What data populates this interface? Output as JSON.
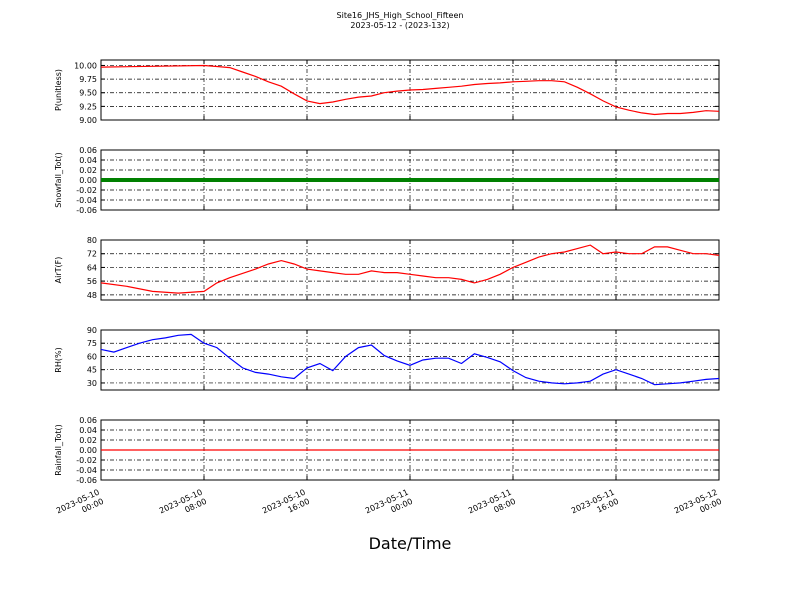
{
  "figure": {
    "title": "Site16_JHS_High_School_Fifteen",
    "subtitle": "2023-05-12 - (2023-132)",
    "xlabel": "Date/Time"
  },
  "chart_data": [
    {
      "type": "line",
      "ylabel": "P(unitless)",
      "ylim": [
        9.0,
        10.1
      ],
      "yticks": [
        "9.00",
        "9.25",
        "9.50",
        "9.75",
        "10.00"
      ],
      "color": "#ff0000",
      "grid": true,
      "x_hours": [
        0,
        8,
        9,
        10,
        11,
        12,
        13,
        14,
        15,
        16,
        17,
        18,
        19,
        20,
        21,
        22,
        23,
        24,
        25,
        26,
        27,
        28,
        29,
        30,
        31,
        32,
        33,
        34,
        35,
        36,
        37,
        38,
        39,
        40,
        41,
        42,
        43,
        44,
        45,
        46,
        47,
        48
      ],
      "values": [
        9.97,
        10.0,
        9.98,
        9.96,
        9.88,
        9.8,
        9.7,
        9.62,
        9.48,
        9.35,
        9.3,
        9.33,
        9.38,
        9.42,
        9.44,
        9.5,
        9.53,
        9.55,
        9.56,
        9.58,
        9.6,
        9.62,
        9.65,
        9.67,
        9.68,
        9.7,
        9.71,
        9.72,
        9.72,
        9.7,
        9.6,
        9.48,
        9.35,
        9.24,
        9.18,
        9.13,
        9.1,
        9.12,
        9.12,
        9.14,
        9.17,
        9.16
      ]
    },
    {
      "type": "line",
      "ylabel": "Snowfall_Tot()",
      "ylim": [
        -0.06,
        0.06
      ],
      "yticks": [
        "-0.06",
        "-0.04",
        "-0.02",
        "0.00",
        "0.02",
        "0.04",
        "0.06"
      ],
      "color": "#008000",
      "grid": true,
      "x_hours": [
        0,
        48
      ],
      "values": [
        0.0,
        0.0
      ]
    },
    {
      "type": "line",
      "ylabel": "AirT(F)",
      "ylim": [
        45,
        80
      ],
      "yticks": [
        "48",
        "56",
        "64",
        "72",
        "80"
      ],
      "color": "#ff0000",
      "grid": true,
      "x_hours": [
        0,
        2,
        4,
        6,
        8,
        9,
        10,
        12,
        13,
        14,
        15,
        16,
        17,
        18,
        19,
        20,
        21,
        22,
        23,
        24,
        25,
        26,
        27,
        28,
        29,
        30,
        31,
        32,
        33,
        34,
        35,
        36,
        37,
        38,
        39,
        40,
        41,
        42,
        43,
        44,
        45,
        46,
        47,
        48
      ],
      "values": [
        55,
        53,
        50,
        49,
        50,
        55,
        58,
        63,
        66,
        68,
        66,
        63,
        62,
        61,
        60,
        60,
        62,
        61,
        61,
        60,
        59,
        58,
        58,
        57,
        55,
        57,
        60,
        64,
        67,
        70,
        72,
        73,
        75,
        77,
        72,
        73,
        72,
        72,
        76,
        76,
        74,
        72,
        72,
        71
      ]
    },
    {
      "type": "line",
      "ylabel": "RH(%)",
      "ylim": [
        22,
        90
      ],
      "yticks": [
        "30",
        "45",
        "60",
        "75",
        "90"
      ],
      "color": "#0000ff",
      "grid": true,
      "x_hours": [
        0,
        1,
        2,
        3,
        4,
        5,
        6,
        7,
        8,
        9,
        10,
        11,
        12,
        13,
        14,
        15,
        16,
        17,
        18,
        19,
        20,
        21,
        22,
        23,
        24,
        25,
        26,
        27,
        28,
        29,
        30,
        31,
        32,
        33,
        34,
        35,
        36,
        37,
        38,
        39,
        40,
        41,
        42,
        43,
        44,
        45,
        46,
        47,
        48
      ],
      "values": [
        68,
        65,
        70,
        75,
        79,
        81,
        84,
        85,
        75,
        70,
        58,
        47,
        42,
        40,
        37,
        35,
        47,
        52,
        44,
        60,
        70,
        73,
        61,
        55,
        50,
        56,
        58,
        58,
        52,
        63,
        59,
        54,
        44,
        36,
        32,
        30,
        29,
        30,
        32,
        40,
        45,
        40,
        35,
        28,
        29,
        30,
        32,
        34,
        35
      ]
    },
    {
      "type": "line",
      "ylabel": "Rainfall_Tot()",
      "ylim": [
        -0.06,
        0.06
      ],
      "yticks": [
        "-0.06",
        "-0.04",
        "-0.02",
        "0.00",
        "0.02",
        "0.04",
        "0.06"
      ],
      "color": "#ff0000",
      "grid": true,
      "x_hours": [
        0,
        48
      ],
      "values": [
        0.0,
        0.0
      ]
    }
  ],
  "xaxis": {
    "tick_hours": [
      0,
      8,
      16,
      24,
      32,
      40,
      48
    ],
    "tick_labels": [
      [
        "2023-05-10",
        "00:00"
      ],
      [
        "2023-05-10",
        "08:00"
      ],
      [
        "2023-05-10",
        "16:00"
      ],
      [
        "2023-05-11",
        "00:00"
      ],
      [
        "2023-05-11",
        "08:00"
      ],
      [
        "2023-05-11",
        "16:00"
      ],
      [
        "2023-05-12",
        "00:00"
      ]
    ]
  }
}
